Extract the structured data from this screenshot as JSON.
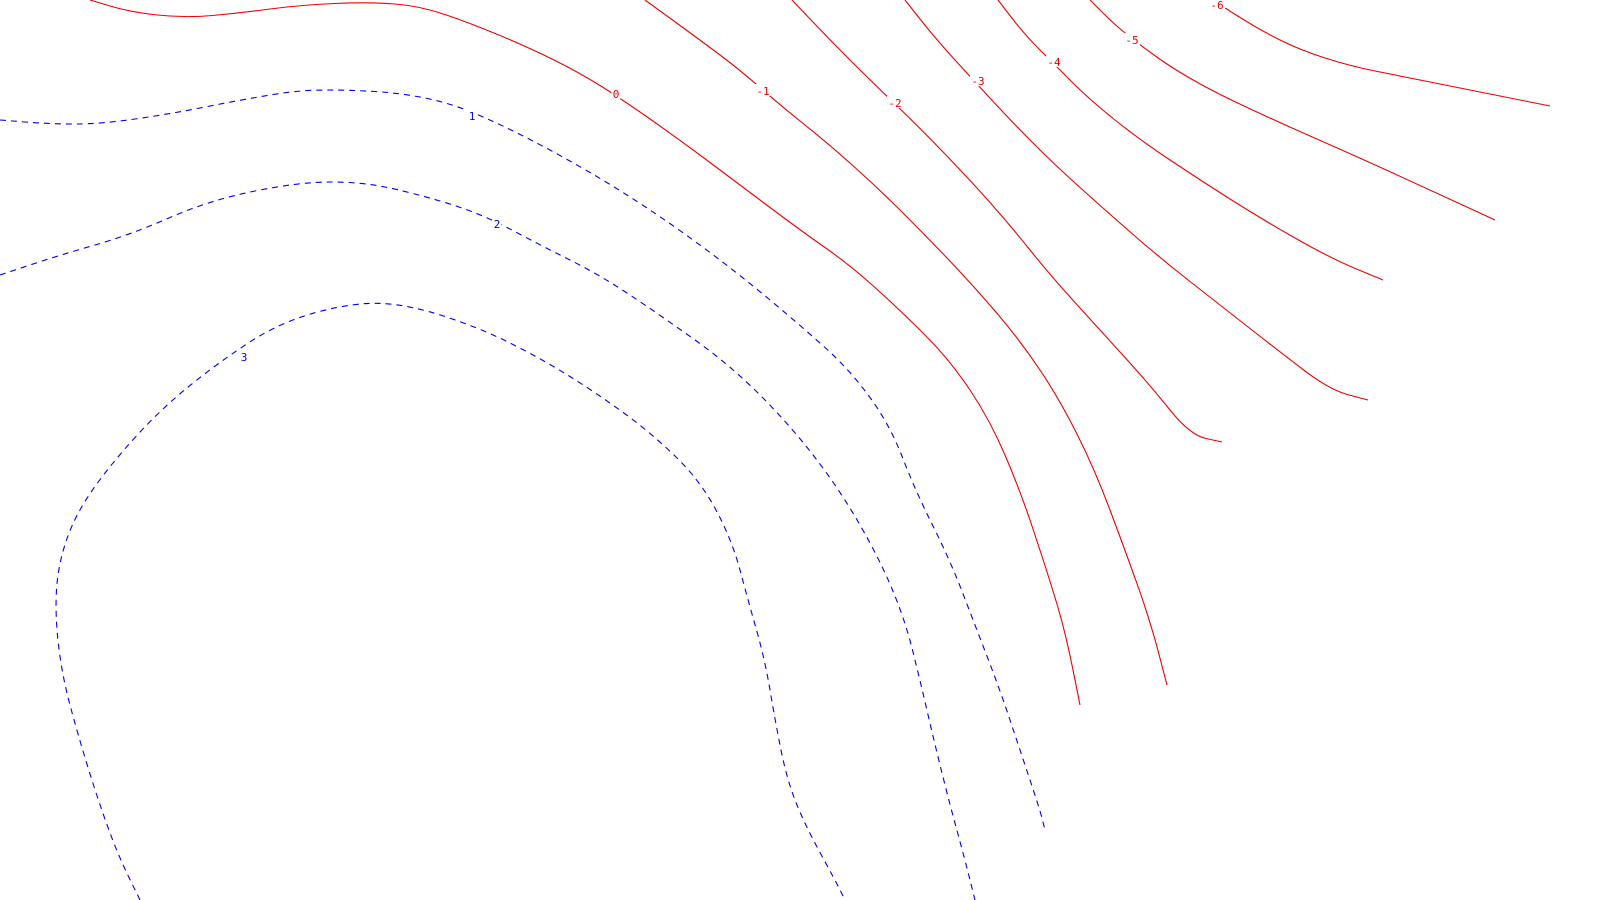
{
  "chart_data": {
    "type": "contour",
    "title": "",
    "xlabel": "",
    "ylabel": "",
    "grid": false,
    "legend": false,
    "colors": {
      "positive": "#0000ee",
      "negative": "#ee0000",
      "background": "#ffffff"
    },
    "line_styles": {
      "positive": "dashed",
      "negative": "solid"
    },
    "levels": [
      {
        "level": 3,
        "label": "3"
      },
      {
        "level": 2,
        "label": "2"
      },
      {
        "level": 1,
        "label": "1"
      },
      {
        "level": 0,
        "label": "0"
      },
      {
        "level": -1,
        "label": "-1"
      },
      {
        "level": -2,
        "label": "-2"
      },
      {
        "level": -3,
        "label": "-3"
      },
      {
        "level": -4,
        "label": "-4"
      },
      {
        "level": -5,
        "label": "-5"
      },
      {
        "level": -6,
        "label": "-6"
      }
    ]
  }
}
